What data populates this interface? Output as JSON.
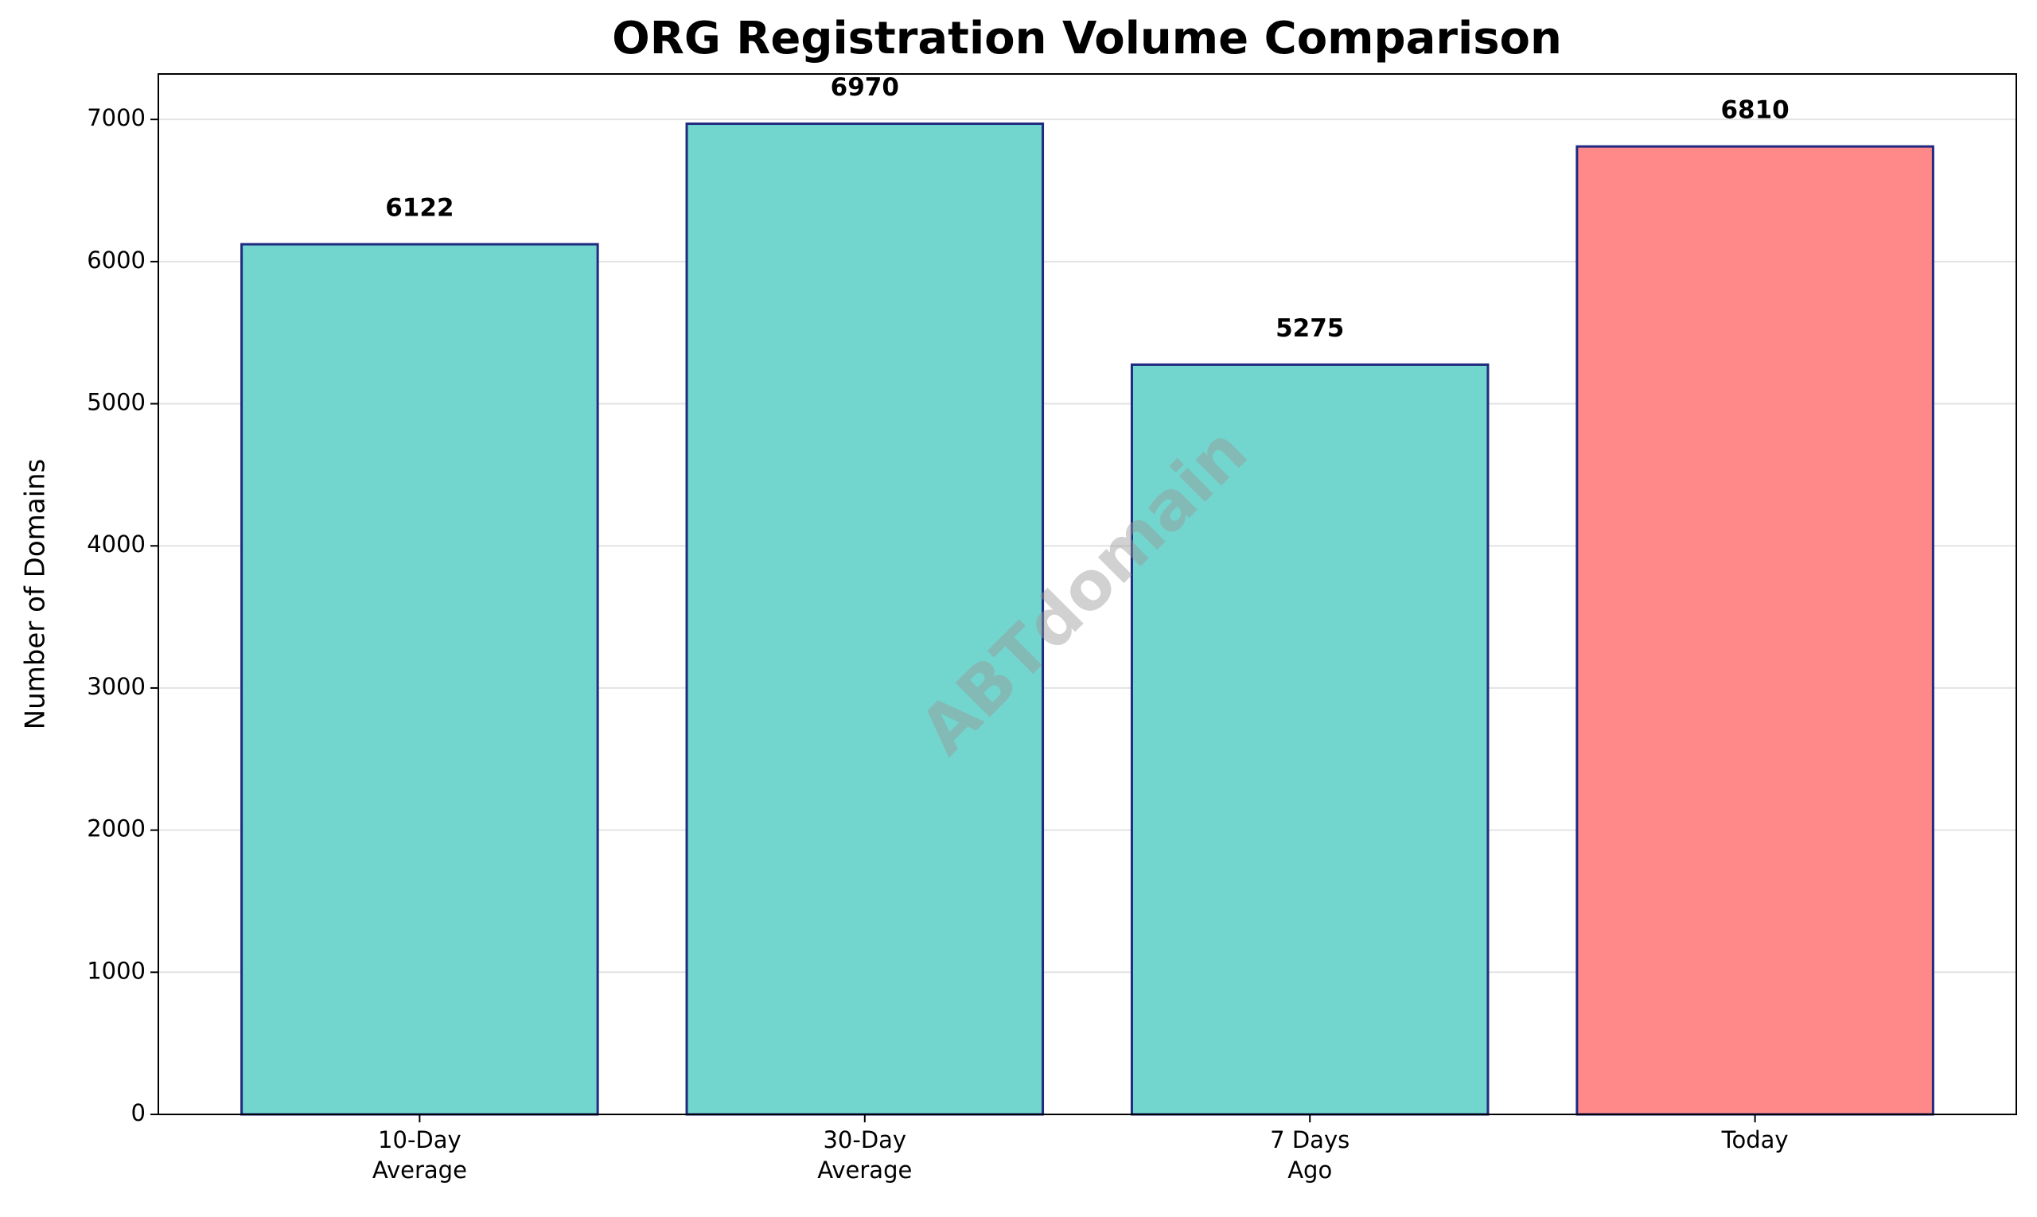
{
  "chart_data": {
    "type": "bar",
    "title": "ORG Registration Volume Comparison",
    "y_label": "Number of Domains",
    "categories": [
      "10-Day\nAverage",
      "30-Day\nAverage",
      "7 Days\nAgo",
      "Today"
    ],
    "values": [
      6122,
      6970,
      5275,
      6810
    ],
    "colors": [
      "#72d6cf",
      "#72d6cf",
      "#72d6cf",
      "#ff8888"
    ],
    "edgecolor": "#1f2a80",
    "ylim": [
      0,
      7320
    ],
    "yticks": [
      0,
      1000,
      2000,
      3000,
      4000,
      5000,
      6000,
      7000
    ],
    "grid": true,
    "watermark": "ABTdomain"
  }
}
